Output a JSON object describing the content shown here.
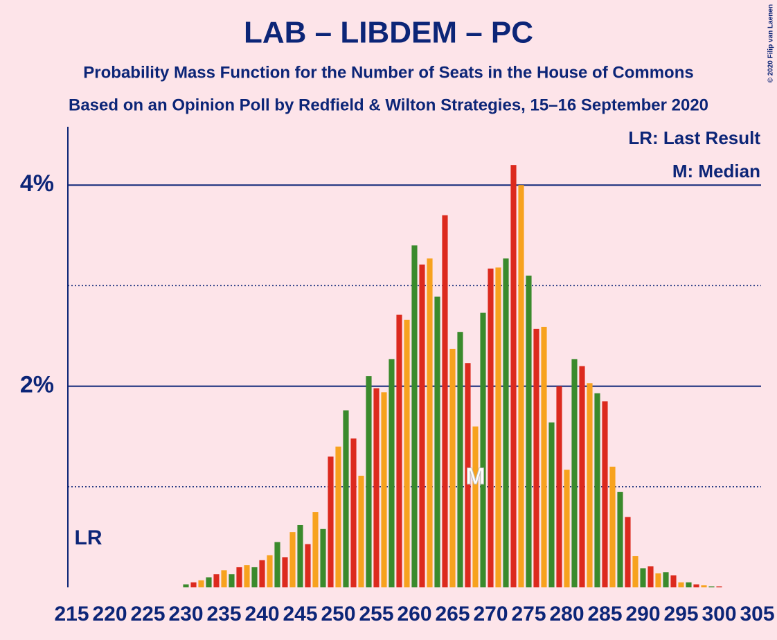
{
  "chart_data": {
    "type": "bar",
    "title": "LAB – LIBDEM – PC",
    "subtitle": "Probability Mass Function for the Number of Seats in the House of Commons",
    "subtitle2": "Based on an Opinion Poll by Redfield & Wilton Strategies, 15–16 September 2020",
    "copyright": "© 2020 Filip van Laenen",
    "x": [
      215,
      216,
      217,
      218,
      219,
      220,
      221,
      222,
      223,
      224,
      225,
      226,
      227,
      228,
      229,
      230,
      231,
      232,
      233,
      234,
      235,
      236,
      237,
      238,
      239,
      240,
      241,
      242,
      243,
      244,
      245,
      246,
      247,
      248,
      249,
      250,
      251,
      252,
      253,
      254,
      255,
      256,
      257,
      258,
      259,
      260,
      261,
      262,
      263,
      264,
      265,
      266,
      267,
      268,
      269,
      270,
      271,
      272,
      273,
      274,
      275,
      276,
      277,
      278,
      279,
      280,
      281,
      282,
      283,
      284,
      285,
      286,
      287,
      288,
      289,
      290,
      291,
      292,
      293,
      294,
      295,
      296,
      297,
      298,
      299,
      300,
      301,
      302,
      303,
      304,
      305
    ],
    "values": [
      0,
      0,
      0,
      0,
      0,
      0,
      0,
      0,
      0,
      0,
      0,
      0,
      0,
      0,
      0,
      0.03,
      0.05,
      0.07,
      0.1,
      0.13,
      0.17,
      0.13,
      0.2,
      0.22,
      0.2,
      0.27,
      0.32,
      0.45,
      0.3,
      0.55,
      0.62,
      0.43,
      0.75,
      0.58,
      1.3,
      1.4,
      1.76,
      1.48,
      1.11,
      2.1,
      1.98,
      1.94,
      2.27,
      2.71,
      2.66,
      3.4,
      3.21,
      3.27,
      2.89,
      3.7,
      2.37,
      2.54,
      2.23,
      1.6,
      2.73,
      3.17,
      3.18,
      3.27,
      4.2,
      4.0,
      3.1,
      2.57,
      2.59,
      1.64,
      2.0,
      1.17,
      2.27,
      2.2,
      2.03,
      1.93,
      1.85,
      1.2,
      0.95,
      0.7,
      0.31,
      0.19,
      0.21,
      0.14,
      0.15,
      0.12,
      0.05,
      0.05,
      0.03,
      0.02,
      0.01,
      0.01,
      0,
      0,
      0,
      0,
      0
    ],
    "bar_colors": [
      "#3a8a2c",
      "#dc2a1e",
      "#f7a21e"
    ],
    "xlim": [
      214.5,
      305.5
    ],
    "xticks": [
      215,
      220,
      225,
      230,
      235,
      240,
      245,
      250,
      255,
      260,
      265,
      270,
      275,
      280,
      285,
      290,
      295,
      300,
      305
    ],
    "ylim": [
      0,
      4.58
    ],
    "yticks": [
      {
        "value": 2,
        "label": "2%"
      },
      {
        "value": 4,
        "label": "4%"
      }
    ],
    "minor_yticks": [
      1,
      3
    ],
    "last_result": {
      "label": "LR",
      "x": 215
    },
    "median": {
      "label": "M",
      "x": 268
    },
    "legend": [
      "LR: Last Result",
      "M: Median"
    ]
  }
}
